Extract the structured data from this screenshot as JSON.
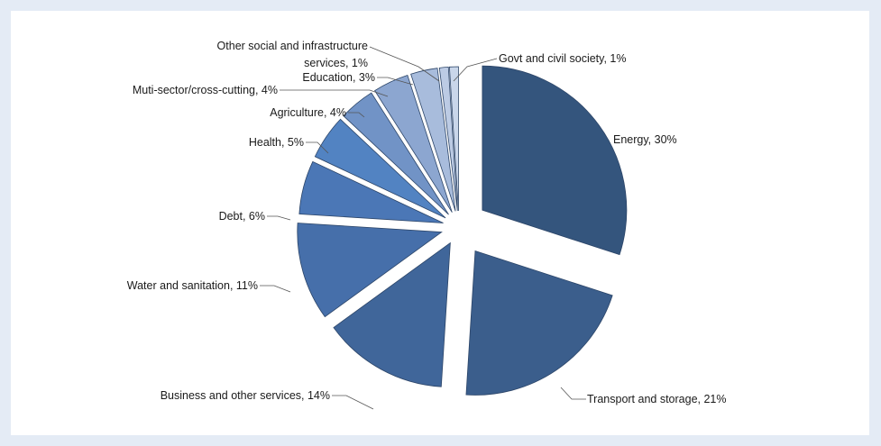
{
  "chart_data": {
    "type": "pie",
    "title": "",
    "exploded": true,
    "slices": [
      {
        "label": "Energy",
        "value": 30,
        "text": "Energy, 30%",
        "color": "#34557d"
      },
      {
        "label": "Transport and storage",
        "value": 21,
        "text": "Transport and storage, 21%",
        "color": "#3b5e8c"
      },
      {
        "label": "Business and other services",
        "value": 14,
        "text": "Business and other services, 14%",
        "color": "#40669a"
      },
      {
        "label": "Water and sanitation",
        "value": 11,
        "text": "Water and sanitation, 11%",
        "color": "#466faa"
      },
      {
        "label": "Debt",
        "value": 6,
        "text": "Debt, 6%",
        "color": "#4b77b6"
      },
      {
        "label": "Health",
        "value": 5,
        "text": "Health, 5%",
        "color": "#5283c2"
      },
      {
        "label": "Agriculture",
        "value": 4,
        "text": "Agriculture, 4%",
        "color": "#7193c6"
      },
      {
        "label": "Muti-sector/cross-cutting",
        "value": 4,
        "text": "Muti-sector/cross-cutting, 4%",
        "color": "#8ca6d0"
      },
      {
        "label": "Education",
        "value": 3,
        "text": "Education, 3%",
        "color": "#a8bcdc"
      },
      {
        "label": "Other social and infrastructure services",
        "value": 1,
        "text": [
          "Other social and infrastructure",
          "services, 1%"
        ],
        "color": "#bccbe4"
      },
      {
        "label": "Govt and civil society",
        "value": 1,
        "text": "Govt and civil society, 1%",
        "color": "#c9d6ea"
      }
    ]
  }
}
